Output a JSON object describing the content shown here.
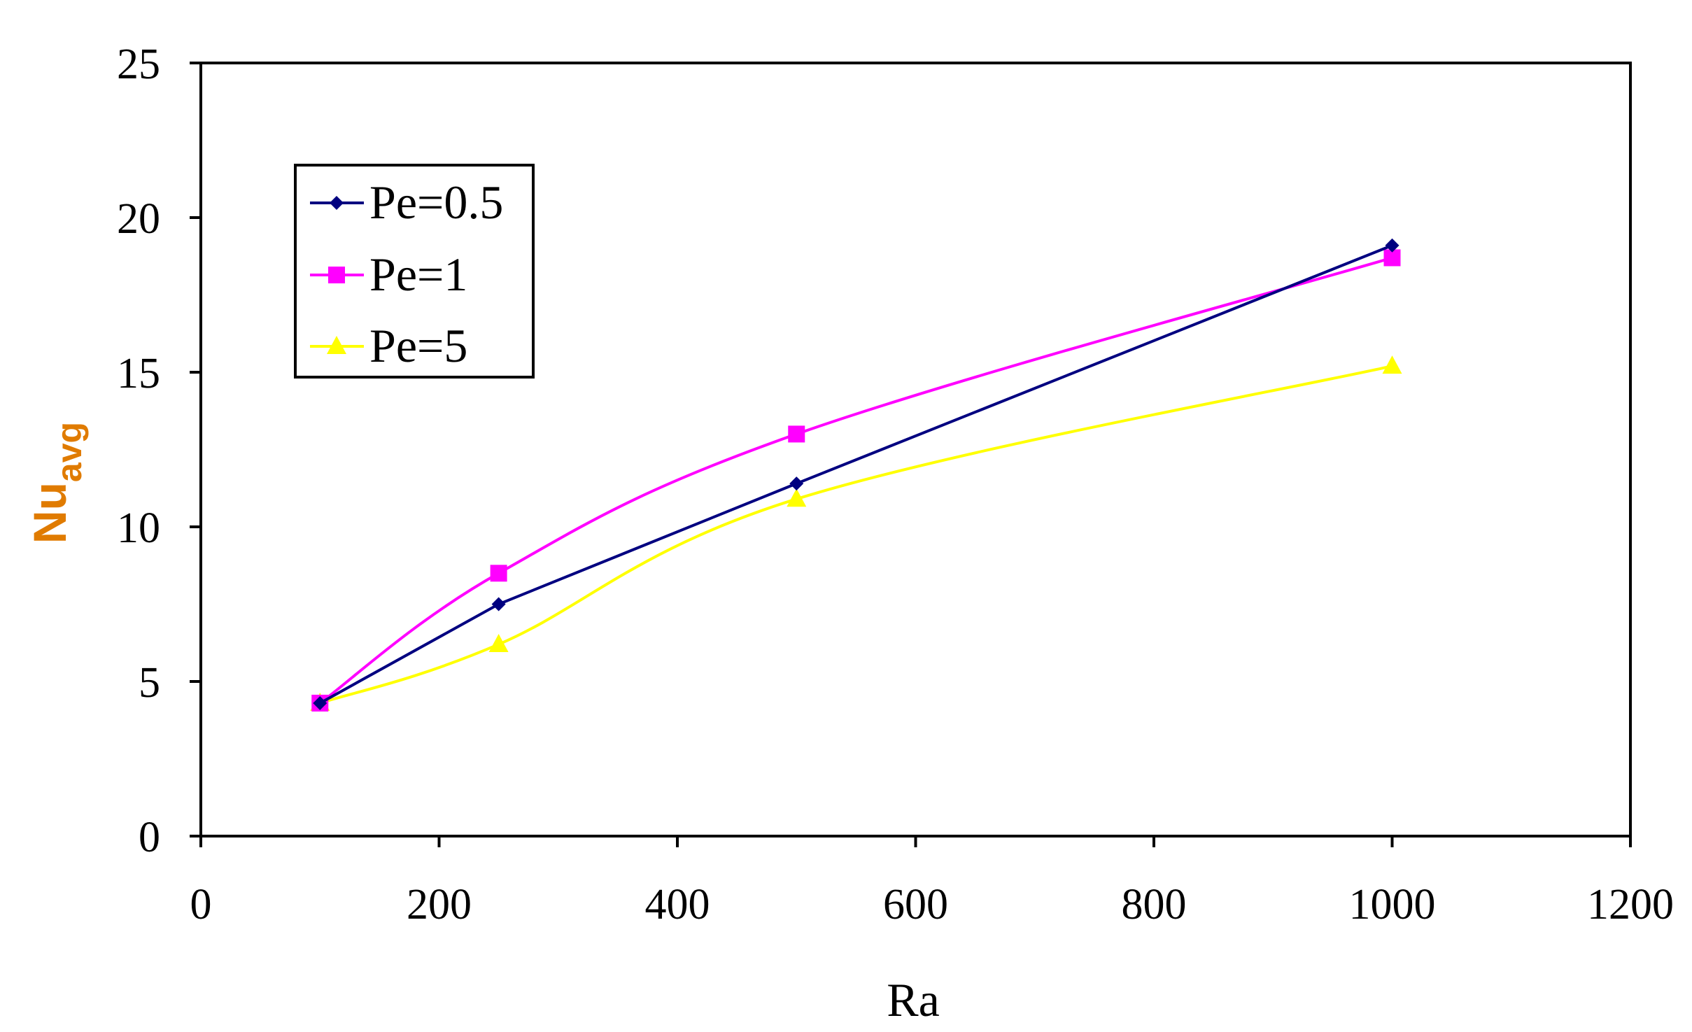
{
  "chart_data": {
    "type": "line",
    "title": "",
    "xlabel": "Ra",
    "ylabel": {
      "main": "Nu",
      "subscript": "avg"
    },
    "xlim": [
      0,
      1200
    ],
    "ylim": [
      0,
      25
    ],
    "x_ticks": [
      0,
      200,
      400,
      600,
      800,
      1000,
      1200
    ],
    "y_ticks": [
      0,
      5,
      10,
      15,
      20,
      25
    ],
    "x_tick_labels": [
      "0",
      "200",
      "400",
      "600",
      "800",
      "1000",
      "1200"
    ],
    "y_tick_labels": [
      "0",
      "5",
      "10",
      "15",
      "20",
      "25"
    ],
    "grid": false,
    "legend_position": "upper-left",
    "series": [
      {
        "name": "Pe=0.5",
        "color": "#000080",
        "marker": "diamond",
        "x": [
          100,
          250,
          500,
          1000
        ],
        "y": [
          4.3,
          7.5,
          11.4,
          19.1
        ]
      },
      {
        "name": "Pe=1",
        "color": "#ff00ff",
        "marker": "square",
        "x": [
          100,
          250,
          500,
          1000
        ],
        "y": [
          4.3,
          8.5,
          13.0,
          18.7
        ]
      },
      {
        "name": "Pe=5",
        "color": "#ffff00",
        "marker": "triangle",
        "x": [
          100,
          250,
          500,
          1000
        ],
        "y": [
          4.3,
          6.2,
          10.9,
          15.2
        ]
      }
    ],
    "ylabel_color": "#e07b00"
  }
}
